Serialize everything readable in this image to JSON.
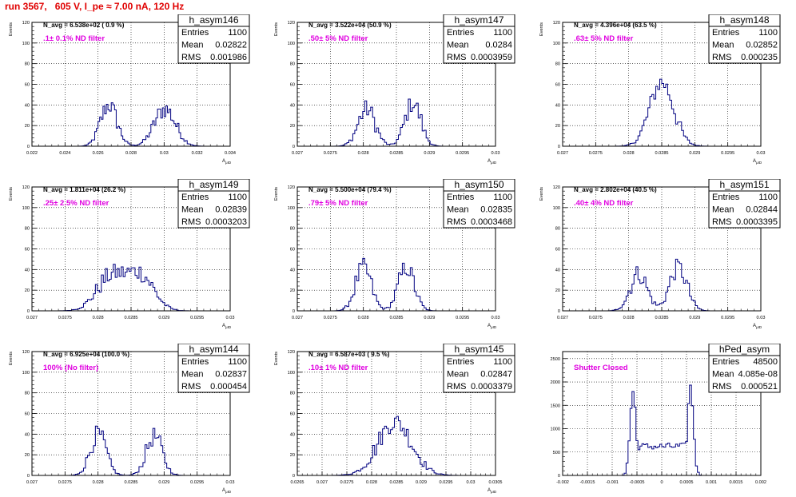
{
  "canvas_title": "run 3567,   605 V, I_pe ≈ 7.00 nA, 120 Hz",
  "stats_labels": {
    "entries": "Entries",
    "mean": "Mean",
    "rms": "RMS"
  },
  "colors": {
    "histogram": "#000080",
    "title": "#e00000",
    "annotation": "#e000e0",
    "grid": "#000000"
  },
  "chart_data": [
    {
      "type": "histogram",
      "name": "h_asym146",
      "navg": "N_avg = 6.538e+02 ( 0.9 %)",
      "label": ".1± 0.1% ND filter",
      "entries": "1100",
      "mean": "0.02822",
      "rms": "0.001986",
      "ylabel": "Events",
      "xlabel": "A_{μID}",
      "xlim": [
        0.022,
        0.034
      ],
      "ylim": [
        0,
        120
      ],
      "xticks": [
        0.022,
        0.024,
        0.026,
        0.028,
        0.03,
        0.032,
        0.034
      ],
      "xtick_labels": [
        "0.022",
        "0.024",
        "0.026",
        "0.028",
        "0.03",
        "0.032",
        "0.034"
      ],
      "yticks": [
        0,
        20,
        40,
        60,
        80,
        100,
        120
      ],
      "ytick_labels": [
        "0",
        "20",
        "40",
        "60",
        "80",
        "100",
        "120"
      ],
      "bin_width": 0.0001,
      "peaks": [
        {
          "center": 0.02665,
          "sigma": 0.0005,
          "amp": 40
        },
        {
          "center": 0.03005,
          "sigma": 0.00065,
          "amp": 36
        }
      ]
    },
    {
      "type": "histogram",
      "name": "h_asym147",
      "navg": "N_avg = 3.522e+04 (50.9 %)",
      "label": ".50± 5% ND filter",
      "entries": "1100",
      "mean": "0.0284",
      "rms": "0.0003959",
      "ylabel": "Events",
      "xlabel": "A_{μID}",
      "xlim": [
        0.027,
        0.03
      ],
      "ylim": [
        0,
        120
      ],
      "xticks": [
        0.027,
        0.0275,
        0.028,
        0.0285,
        0.029,
        0.0295,
        0.03
      ],
      "xtick_labels": [
        "0.027",
        "0.0275",
        "0.028",
        "0.0285",
        "0.029",
        "0.0295",
        "0.03"
      ],
      "yticks": [
        0,
        20,
        40,
        60,
        80,
        100,
        120
      ],
      "ytick_labels": [
        "0",
        "20",
        "40",
        "60",
        "80",
        "100",
        "120"
      ],
      "bin_width": 3e-05,
      "peaks": [
        {
          "center": 0.02805,
          "sigma": 0.00013,
          "amp": 36
        },
        {
          "center": 0.02875,
          "sigma": 0.00012,
          "amp": 42
        }
      ]
    },
    {
      "type": "histogram",
      "name": "h_asym148",
      "navg": "N_avg = 4.396e+04 (63.5 %)",
      "label": ".63± 5% ND filter",
      "entries": "1100",
      "mean": "0.02852",
      "rms": "0.000235",
      "ylabel": "Events",
      "xlabel": "A_{μID}",
      "xlim": [
        0.027,
        0.03
      ],
      "ylim": [
        0,
        120
      ],
      "xticks": [
        0.027,
        0.0275,
        0.028,
        0.0285,
        0.029,
        0.0295,
        0.03
      ],
      "xtick_labels": [
        "0.027",
        "0.0275",
        "0.028",
        "0.0285",
        "0.029",
        "0.0295",
        "0.03"
      ],
      "yticks": [
        0,
        20,
        40,
        60,
        80,
        100,
        120
      ],
      "ytick_labels": [
        "0",
        "20",
        "40",
        "60",
        "80",
        "100",
        "120"
      ],
      "bin_width": 3e-05,
      "peaks": [
        {
          "center": 0.0285,
          "sigma": 0.00018,
          "amp": 62
        }
      ]
    },
    {
      "type": "histogram",
      "name": "h_asym149",
      "navg": "N_avg = 1.811e+04 (26.2 %)",
      "label": ".25± 2.5% ND filter",
      "entries": "1100",
      "mean": "0.02839",
      "rms": "0.0003203",
      "ylabel": "Events",
      "xlabel": "A_{μID}",
      "xlim": [
        0.027,
        0.03
      ],
      "ylim": [
        0,
        120
      ],
      "xticks": [
        0.027,
        0.0275,
        0.028,
        0.0285,
        0.029,
        0.0295,
        0.03
      ],
      "xtick_labels": [
        "0.027",
        "0.0275",
        "0.028",
        "0.0285",
        "0.029",
        "0.0295",
        "0.03"
      ],
      "yticks": [
        0,
        20,
        40,
        60,
        80,
        100,
        120
      ],
      "ytick_labels": [
        "0",
        "20",
        "40",
        "60",
        "80",
        "100",
        "120"
      ],
      "bin_width": 3e-05,
      "peaks": [
        {
          "center": 0.0282,
          "sigma": 0.00022,
          "amp": 33
        },
        {
          "center": 0.02865,
          "sigma": 0.0002,
          "amp": 33
        }
      ]
    },
    {
      "type": "histogram",
      "name": "h_asym150",
      "navg": "N_avg = 5.500e+04 (79.4 %)",
      "label": ".79± 5% ND filter",
      "entries": "1100",
      "mean": "0.02835",
      "rms": "0.0003468",
      "ylabel": "Events",
      "xlabel": "A_{μID}",
      "xlim": [
        0.027,
        0.03
      ],
      "ylim": [
        0,
        120
      ],
      "xticks": [
        0.027,
        0.0275,
        0.028,
        0.0285,
        0.029,
        0.0295,
        0.03
      ],
      "xtick_labels": [
        "0.027",
        "0.0275",
        "0.028",
        "0.0285",
        "0.029",
        "0.0295",
        "0.03"
      ],
      "yticks": [
        0,
        20,
        40,
        60,
        80,
        100,
        120
      ],
      "ytick_labels": [
        "0",
        "20",
        "40",
        "60",
        "80",
        "100",
        "120"
      ],
      "bin_width": 3e-05,
      "peaks": [
        {
          "center": 0.028,
          "sigma": 0.00012,
          "amp": 42
        },
        {
          "center": 0.02865,
          "sigma": 0.00012,
          "amp": 42
        }
      ]
    },
    {
      "type": "histogram",
      "name": "h_asym151",
      "navg": "N_avg = 2.802e+04 (40.5 %)",
      "label": ".40± 4% ND filter",
      "entries": "1100",
      "mean": "0.02844",
      "rms": "0.0003395",
      "ylabel": "Events",
      "xlabel": "A_{μID}",
      "xlim": [
        0.027,
        0.03
      ],
      "ylim": [
        0,
        120
      ],
      "xticks": [
        0.027,
        0.0275,
        0.028,
        0.0285,
        0.029,
        0.0295,
        0.03
      ],
      "xtick_labels": [
        "0.027",
        "0.0275",
        "0.028",
        "0.0285",
        "0.029",
        "0.0295",
        "0.03"
      ],
      "yticks": [
        0,
        20,
        40,
        60,
        80,
        100,
        120
      ],
      "ytick_labels": [
        "0",
        "20",
        "40",
        "60",
        "80",
        "100",
        "120"
      ],
      "bin_width": 3e-05,
      "peaks": [
        {
          "center": 0.02815,
          "sigma": 0.00013,
          "amp": 36
        },
        {
          "center": 0.02875,
          "sigma": 0.00013,
          "amp": 42
        }
      ]
    },
    {
      "type": "histogram",
      "name": "h_asym144",
      "navg": "N_avg = 6.925e+04 (100.0 %)",
      "label": "100% (No filter)",
      "entries": "1100",
      "mean": "0.02837",
      "rms": "0.000454",
      "ylabel": "Events",
      "xlabel": "A_{μID}",
      "xlim": [
        0.027,
        0.03
      ],
      "ylim": [
        0,
        120
      ],
      "xticks": [
        0.027,
        0.0275,
        0.028,
        0.0285,
        0.029,
        0.0295,
        0.03
      ],
      "xtick_labels": [
        "0.027",
        "0.0275",
        "0.028",
        "0.0285",
        "0.029",
        "0.0295",
        "0.03"
      ],
      "yticks": [
        0,
        20,
        40,
        60,
        80,
        100,
        120
      ],
      "ytick_labels": [
        "0",
        "20",
        "40",
        "60",
        "80",
        "100",
        "120"
      ],
      "bin_width": 3e-05,
      "peaks": [
        {
          "center": 0.028,
          "sigma": 0.00012,
          "amp": 40
        },
        {
          "center": 0.02885,
          "sigma": 0.00012,
          "amp": 38
        }
      ]
    },
    {
      "type": "histogram",
      "name": "h_asym145",
      "navg": "N_avg = 6.587e+03 ( 9.5 %)",
      "label": ".10± 1% ND filter",
      "entries": "1100",
      "mean": "0.02847",
      "rms": "0.0003379",
      "ylabel": "Events",
      "xlabel": "A_{μID}",
      "xlim": [
        0.0265,
        0.0305
      ],
      "ylim": [
        0,
        120
      ],
      "xticks": [
        0.0265,
        0.027,
        0.0275,
        0.028,
        0.0285,
        0.029,
        0.0295,
        0.03,
        0.0305
      ],
      "xtick_labels": [
        "0.0265",
        "0.027",
        "0.0275",
        "0.028",
        "0.0285",
        "0.029",
        "0.0295",
        "0.03",
        "0.0305"
      ],
      "yticks": [
        0,
        20,
        40,
        60,
        80,
        100,
        120
      ],
      "ytick_labels": [
        "0",
        "20",
        "40",
        "60",
        "80",
        "100",
        "120"
      ],
      "bin_width": 4e-05,
      "peaks": [
        {
          "center": 0.02847,
          "sigma": 0.00034,
          "amp": 52
        }
      ]
    },
    {
      "type": "histogram",
      "name": "hPed_asym",
      "navg": "",
      "label": "Shutter Closed",
      "entries": "48500",
      "mean": "4.085e-08",
      "rms": "0.000521",
      "ylabel": "",
      "xlabel": "",
      "xlim": [
        -0.002,
        0.002
      ],
      "ylim": [
        0,
        2650
      ],
      "xticks": [
        -0.002,
        -0.0015,
        -0.001,
        -0.0005,
        0,
        0.0005,
        0.001,
        0.0015,
        0.002
      ],
      "xtick_labels": [
        "-0.002",
        "-0.0015",
        "-0.001",
        "-0.0005",
        "0",
        "0.0005",
        "0.001",
        "0.0015",
        "0.002"
      ],
      "yticks": [
        0,
        500,
        1000,
        1500,
        2000,
        2500
      ],
      "ytick_labels": [
        "0",
        "500",
        "1000",
        "1500",
        "2000",
        "2500"
      ],
      "bin_width": 4e-05,
      "peaks": [
        {
          "center": -0.00058,
          "sigma": 6e-05,
          "amp": 1800
        },
        {
          "center": 0.00058,
          "sigma": 6e-05,
          "amp": 1900
        }
      ],
      "plateau": {
        "from": -0.00055,
        "to": 0.00055,
        "level": 620
      }
    }
  ]
}
